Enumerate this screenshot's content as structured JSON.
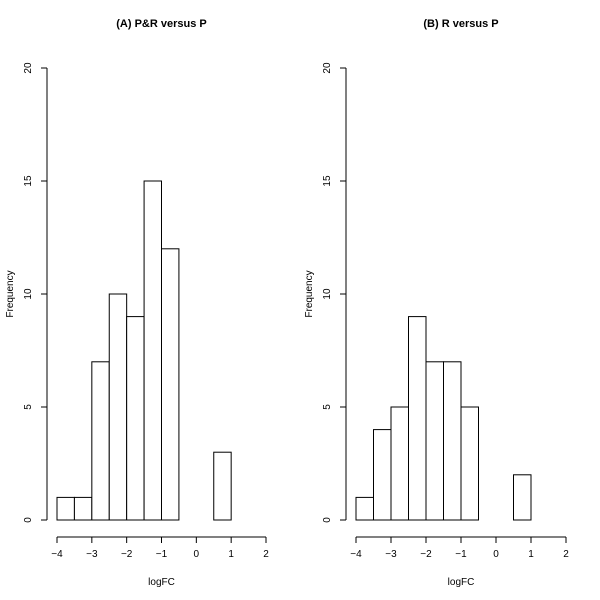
{
  "chart_data": [
    {
      "type": "bar",
      "title": "(A) P&R versus P",
      "xlabel": "logFC",
      "ylabel": "Frequency",
      "xlim": [
        -4,
        2
      ],
      "ylim": [
        0,
        20
      ],
      "xticks": [
        -4,
        -3,
        -2,
        -1,
        0,
        1,
        2
      ],
      "yticks": [
        0,
        5,
        10,
        15,
        20
      ],
      "bin_width": 0.5,
      "bin_starts": [
        -4.0,
        -3.5,
        -3.0,
        -2.5,
        -2.0,
        -1.5,
        -1.0,
        -0.5,
        0.0,
        0.5
      ],
      "values": [
        1,
        1,
        7,
        10,
        9,
        15,
        12,
        0,
        0,
        3
      ]
    },
    {
      "type": "bar",
      "title": "(B) R versus P",
      "xlabel": "logFC",
      "ylabel": "Frequency",
      "xlim": [
        -4,
        2
      ],
      "ylim": [
        0,
        20
      ],
      "xticks": [
        -4,
        -3,
        -2,
        -1,
        0,
        1,
        2
      ],
      "yticks": [
        0,
        5,
        10,
        15,
        20
      ],
      "bin_width": 0.5,
      "bin_starts": [
        -4.0,
        -3.5,
        -3.0,
        -2.5,
        -2.0,
        -1.5,
        -1.0,
        -0.5,
        0.0,
        0.5
      ],
      "values": [
        1,
        4,
        5,
        9,
        7,
        7,
        5,
        0,
        0,
        2
      ]
    }
  ]
}
